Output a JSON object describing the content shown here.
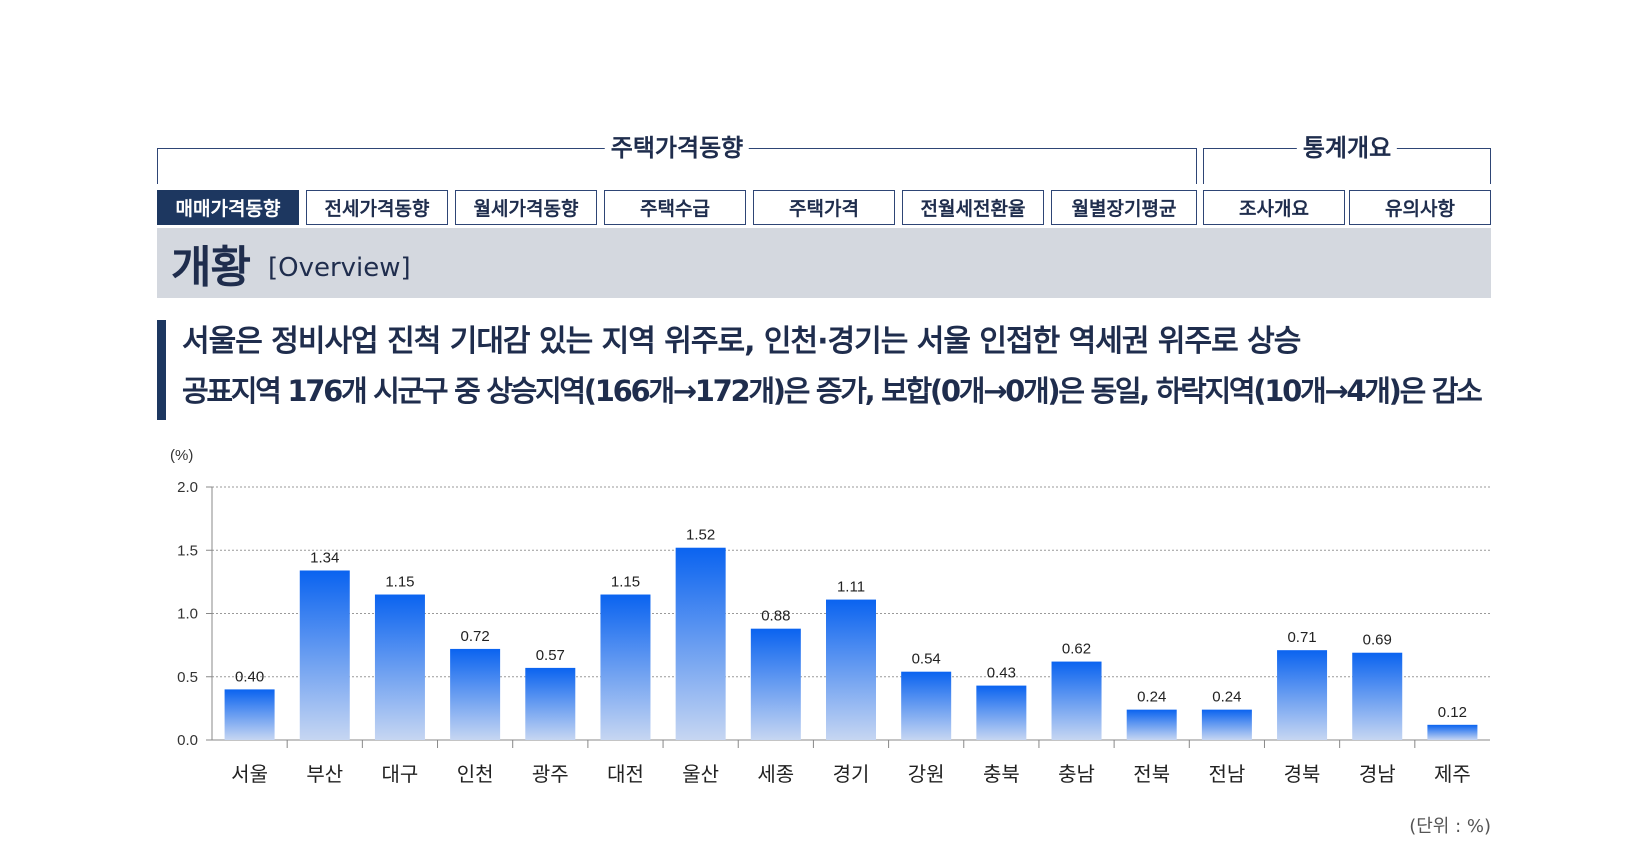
{
  "nav": {
    "groups": [
      {
        "label": "주택가격동향"
      },
      {
        "label": "통계개요"
      }
    ],
    "tabs": [
      {
        "label": "매매가격동향",
        "active": true
      },
      {
        "label": "전세가격동향",
        "active": false
      },
      {
        "label": "월세가격동향",
        "active": false
      },
      {
        "label": "주택수급",
        "active": false
      },
      {
        "label": "주택가격",
        "active": false
      },
      {
        "label": "전월세전환율",
        "active": false
      },
      {
        "label": "월별장기평균",
        "active": false
      },
      {
        "label": "조사개요",
        "active": false
      },
      {
        "label": "유의사항",
        "active": false
      }
    ]
  },
  "banner": {
    "title": "개황",
    "subtitle": "[Overview]"
  },
  "headline": {
    "line1": "서울은 정비사업 진척 기대감 있는 지역 위주로, 인천·경기는 서울 인접한 역세권 위주로 상승",
    "line2": "공표지역 176개 시군구 중 상승지역(166개→172개)은 증가, 보합(0개→0개)은 동일, 하락지역(10개→4개)은 감소"
  },
  "colors": {
    "navy": "#1d3760",
    "bar_top": "#0a63f0",
    "bar_bottom": "#c6d6f2"
  },
  "chart_data": {
    "type": "bar",
    "ylabel": "(%)",
    "unit_note": "(단위 : %)",
    "ylim": [
      0,
      2.0
    ],
    "yticks": [
      "2.0",
      "1.5",
      "1.0",
      "0.5",
      "0.0"
    ],
    "grid": true,
    "categories": [
      "서울",
      "부산",
      "대구",
      "인천",
      "광주",
      "대전",
      "울산",
      "세종",
      "경기",
      "강원",
      "충북",
      "충남",
      "전북",
      "전남",
      "경북",
      "경남",
      "제주"
    ],
    "values": [
      0.4,
      1.34,
      1.15,
      0.72,
      0.57,
      1.15,
      1.52,
      0.88,
      1.11,
      0.54,
      0.43,
      0.62,
      0.24,
      0.24,
      0.71,
      0.69,
      0.12
    ],
    "value_labels": [
      "0.40",
      "1.34",
      "1.15",
      "0.72",
      "0.57",
      "1.15",
      "1.52",
      "0.88",
      "1.11",
      "0.54",
      "0.43",
      "0.62",
      "0.24",
      "0.24",
      "0.71",
      "0.69",
      "0.12"
    ]
  }
}
